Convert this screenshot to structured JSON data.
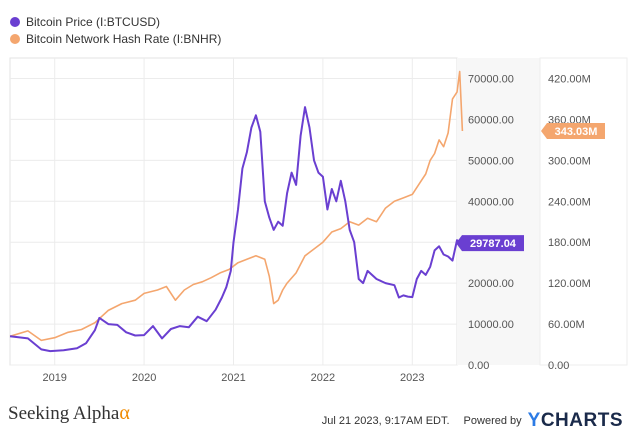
{
  "chart_data": {
    "type": "line",
    "legend": {
      "placement": "top-left",
      "entries": [
        {
          "name": "Bitcoin Price (I:BTCUSD)",
          "color": "#6a3fd1"
        },
        {
          "name": "Bitcoin Network Hash Rate (I:BNHR)",
          "color": "#f4a66e"
        }
      ]
    },
    "x_ticks": [
      "2019",
      "2020",
      "2021",
      "2022",
      "2023"
    ],
    "xlim": [
      "2018-07",
      "2023-07"
    ],
    "left_axis": {
      "ylim": [
        0,
        75000
      ],
      "ticks": [
        "0.00",
        "10000.00",
        "20000.00",
        "30000.00",
        "40000.00",
        "50000.00",
        "60000.00",
        "70000.00"
      ]
    },
    "right_axis": {
      "ylim": [
        0,
        450
      ],
      "unit": "M",
      "ticks": [
        "0.00",
        "60.00M",
        "120.00M",
        "180.00M",
        "240.00M",
        "300.00M",
        "360.00M",
        "420.00M"
      ]
    },
    "series": [
      {
        "name": "Bitcoin Price (I:BTCUSD)",
        "axis": "left",
        "color": "#6a3fd1",
        "last_value_label": "29787.04",
        "x": [
          2018.5,
          2018.7,
          2018.85,
          2018.95,
          2019.1,
          2019.25,
          2019.35,
          2019.45,
          2019.5,
          2019.6,
          2019.7,
          2019.8,
          2019.9,
          2020.0,
          2020.1,
          2020.2,
          2020.3,
          2020.4,
          2020.5,
          2020.6,
          2020.7,
          2020.8,
          2020.87,
          2020.92,
          2020.97,
          2021.0,
          2021.05,
          2021.1,
          2021.15,
          2021.2,
          2021.25,
          2021.3,
          2021.35,
          2021.4,
          2021.45,
          2021.5,
          2021.55,
          2021.6,
          2021.65,
          2021.7,
          2021.75,
          2021.8,
          2021.85,
          2021.9,
          2021.95,
          2022.0,
          2022.05,
          2022.1,
          2022.15,
          2022.2,
          2022.25,
          2022.3,
          2022.35,
          2022.4,
          2022.45,
          2022.5,
          2022.6,
          2022.7,
          2022.8,
          2022.85,
          2022.9,
          2022.95,
          2023.0,
          2023.05,
          2023.1,
          2023.15,
          2023.2,
          2023.25,
          2023.3,
          2023.35,
          2023.4,
          2023.45,
          2023.5,
          2023.55
        ],
        "values": [
          7000,
          6500,
          3800,
          3400,
          3600,
          4100,
          5300,
          8500,
          11500,
          10000,
          9800,
          8000,
          7200,
          7300,
          9500,
          6500,
          8800,
          9500,
          9200,
          11800,
          10700,
          13500,
          16500,
          19000,
          23000,
          30000,
          38000,
          48000,
          52000,
          58000,
          61000,
          57000,
          40000,
          36000,
          33000,
          35000,
          34000,
          42000,
          47000,
          44000,
          56000,
          63000,
          58000,
          50000,
          47000,
          46000,
          38000,
          43000,
          40000,
          45000,
          40000,
          33000,
          30000,
          21000,
          20000,
          23000,
          21000,
          20000,
          19500,
          16500,
          17000,
          16700,
          16600,
          21000,
          23000,
          22000,
          24000,
          28000,
          29000,
          27000,
          26500,
          25500,
          30500,
          29787
        ]
      },
      {
        "name": "Bitcoin Network Hash Rate (I:BNHR)",
        "axis": "right",
        "color": "#f4a66e",
        "last_value_label": "343.03M",
        "x": [
          2018.5,
          2018.7,
          2018.85,
          2019.0,
          2019.15,
          2019.3,
          2019.45,
          2019.6,
          2019.75,
          2019.9,
          2020.0,
          2020.15,
          2020.25,
          2020.35,
          2020.45,
          2020.55,
          2020.65,
          2020.75,
          2020.85,
          2020.95,
          2021.05,
          2021.15,
          2021.25,
          2021.35,
          2021.4,
          2021.45,
          2021.5,
          2021.55,
          2021.6,
          2021.7,
          2021.8,
          2021.9,
          2022.0,
          2022.1,
          2022.2,
          2022.3,
          2022.4,
          2022.5,
          2022.6,
          2022.7,
          2022.8,
          2022.9,
          2023.0,
          2023.1,
          2023.15,
          2023.2,
          2023.25,
          2023.3,
          2023.35,
          2023.4,
          2023.45,
          2023.5,
          2023.53,
          2023.56
        ],
        "values": [
          42,
          50,
          36,
          40,
          48,
          52,
          62,
          80,
          90,
          95,
          105,
          110,
          115,
          95,
          110,
          118,
          122,
          128,
          135,
          140,
          150,
          155,
          160,
          155,
          130,
          90,
          95,
          110,
          120,
          135,
          160,
          170,
          180,
          195,
          200,
          210,
          205,
          215,
          210,
          230,
          240,
          245,
          250,
          270,
          280,
          300,
          310,
          330,
          320,
          340,
          390,
          400,
          430,
          343
        ]
      }
    ]
  },
  "footer": {
    "brand_left": "Seeking Alpha",
    "brand_left_mark": "α",
    "timestamp": "Jul 21 2023, 9:17AM EDT.",
    "powered_by": "Powered by",
    "brand_right": "YCHARTS"
  }
}
